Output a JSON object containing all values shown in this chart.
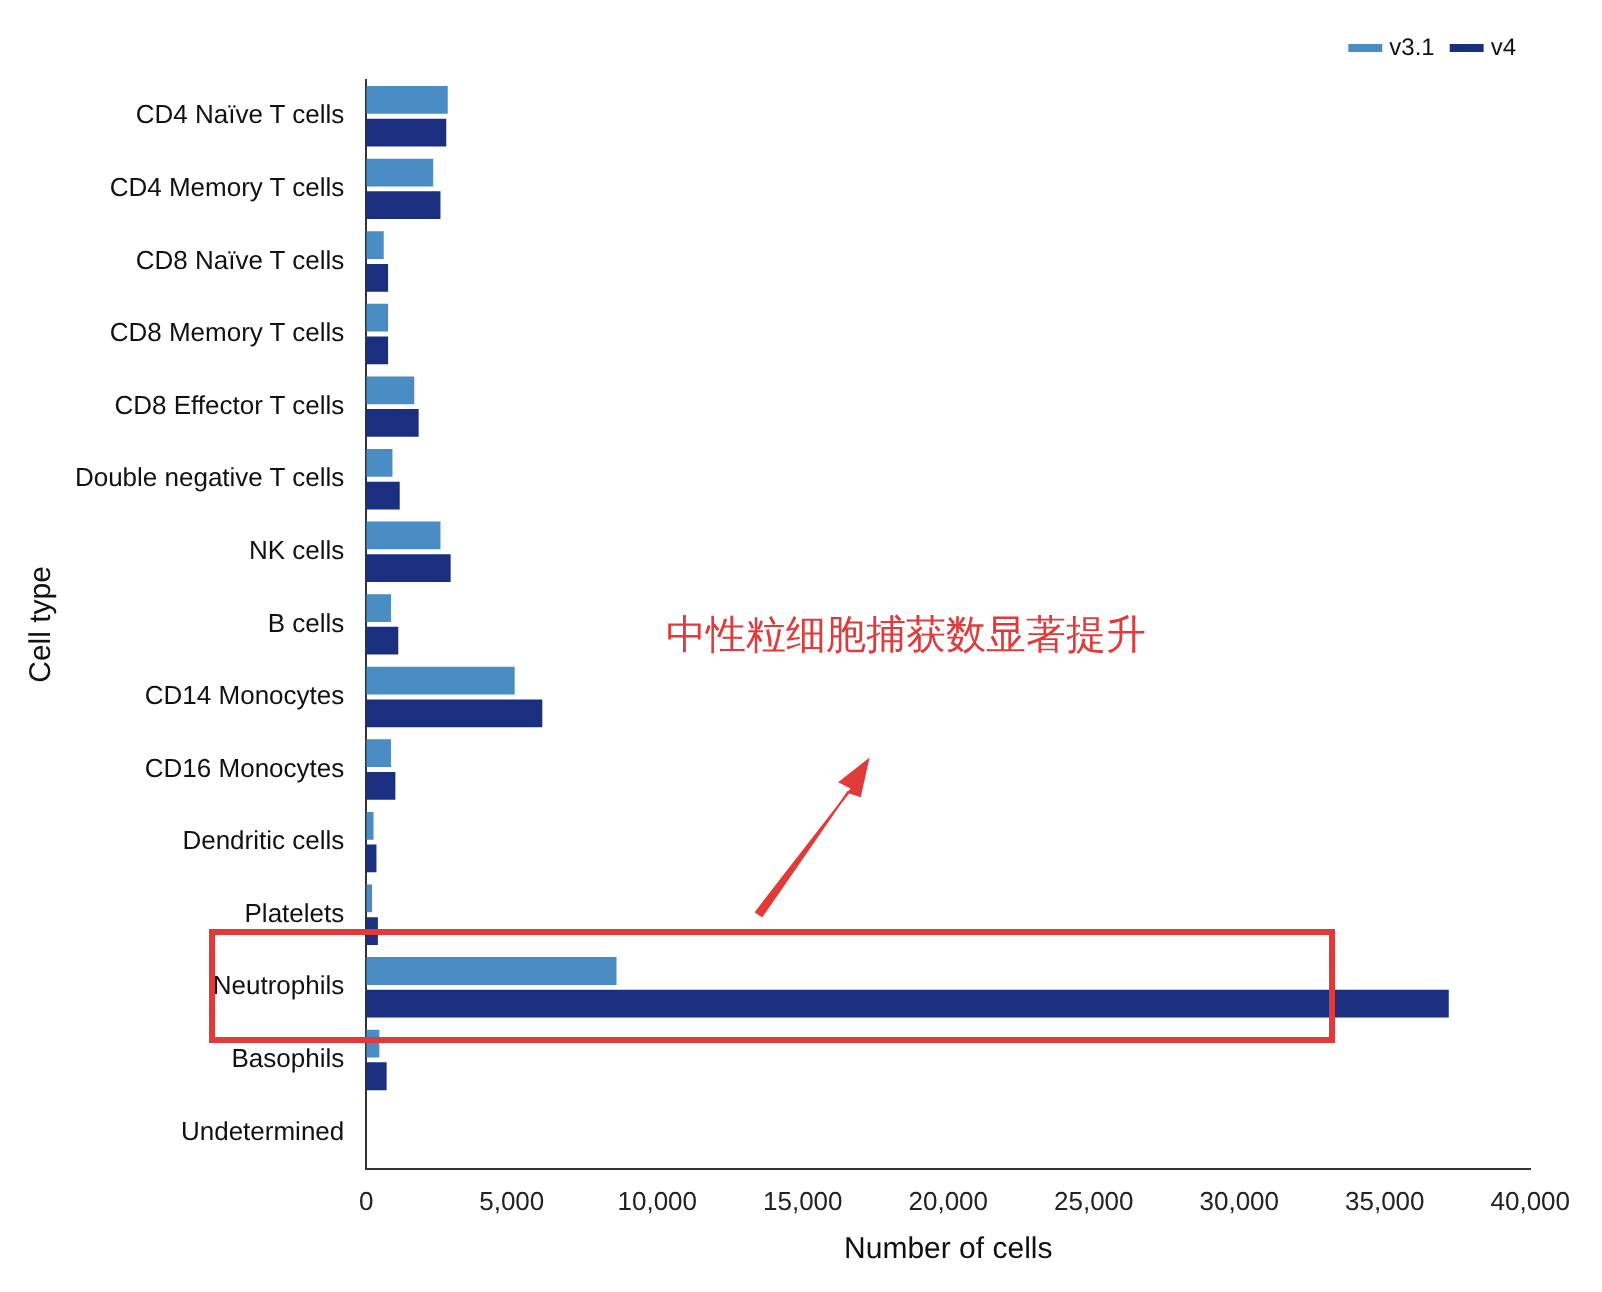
{
  "chart_data": {
    "type": "bar",
    "orientation": "horizontal",
    "xlabel": "Number of cells",
    "ylabel": "Cell type",
    "categories": [
      "CD4 Naïve T cells",
      "CD4 Memory T cells",
      "CD8 Naïve T cells",
      "CD8 Memory T cells",
      "CD8 Effector T cells",
      "Double negative T cells",
      "NK cells",
      "B cells",
      "CD14 Monocytes",
      "CD16 Monocytes",
      "Dendritic cells",
      "Platelets",
      "Neutrophils",
      "Basophils",
      "Undetermined"
    ],
    "series": [
      {
        "name": "v3.1",
        "color": "#4a8cc4",
        "values": [
          2800,
          2300,
          600,
          750,
          1650,
          900,
          2550,
          850,
          5100,
          850,
          250,
          200,
          8600,
          450,
          0
        ]
      },
      {
        "name": "v4",
        "color": "#1a2f80",
        "values": [
          2750,
          2550,
          750,
          750,
          1800,
          1150,
          2900,
          1100,
          6050,
          1000,
          350,
          400,
          37200,
          700,
          0
        ]
      }
    ],
    "xlim": [
      0,
      40000
    ],
    "xticks": [
      0,
      {
        "value": 5000,
        "label": "5,000"
      },
      {
        "value": 10000,
        "label": "10,000"
      },
      {
        "value": 15000,
        "label": "15,000"
      },
      {
        "value": 20000,
        "label": "20,000"
      },
      {
        "value": 25000,
        "label": "25,000"
      },
      {
        "value": 30000,
        "label": "30,000"
      },
      {
        "value": 35000,
        "label": "35,000"
      },
      {
        "value": 40000,
        "label": "40,000"
      }
    ],
    "grid": false,
    "legend": "top right",
    "annotations": [
      "中性粒细胞捕获数显著提升"
    ]
  }
}
